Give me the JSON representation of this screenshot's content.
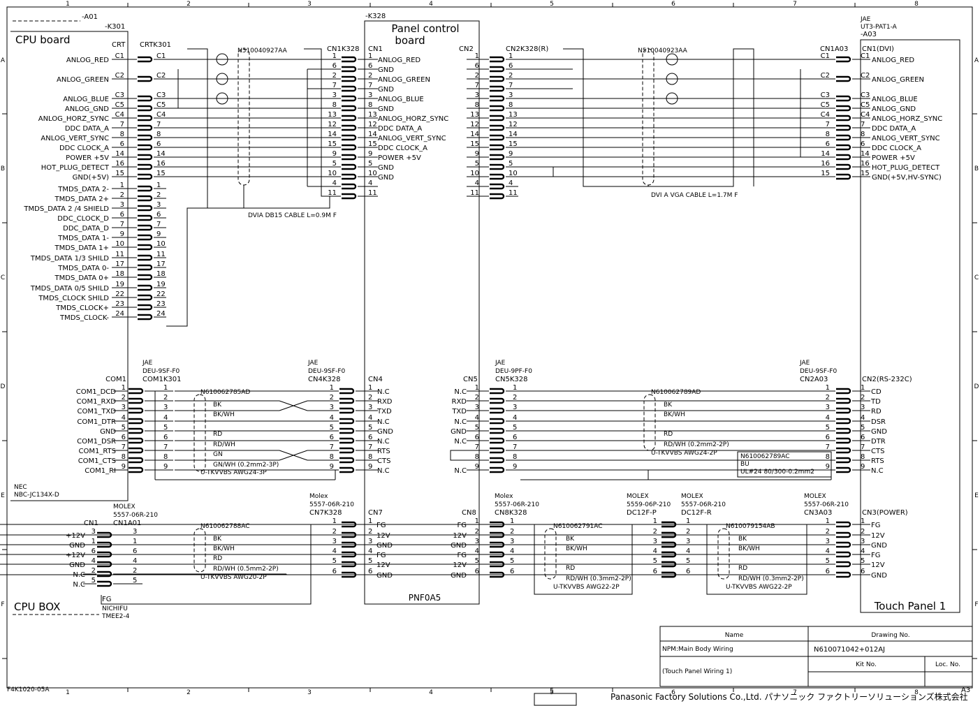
{
  "frame": {
    "columns": [
      "1",
      "2",
      "3",
      "4",
      "5",
      "6",
      "7",
      "8"
    ],
    "rows": [
      "A",
      "B",
      "C",
      "D",
      "E",
      "F"
    ],
    "doc_code": "F4K1020-05A",
    "sheet": "A3",
    "page_box": "5",
    "company": "Panasonic Factory Solutions Co.,Ltd. パナソニック ファクトリーソリューションズ株式会社"
  },
  "title_block": {
    "name_header": "Name",
    "drawing_header": "Drawing No.",
    "name": "NPM:Main Body Wiring",
    "subname": "(Touch Panel Wiring 1)",
    "drawing_no": "N610071042+012AJ",
    "kit_header": "Kit No.",
    "loc_header": "Loc. No."
  },
  "cpu_board": {
    "ref": "-A01",
    "sub_ref": "-K301",
    "title": "CPU board",
    "maker": "NEC",
    "model": "NBC-JC134X-D"
  },
  "cpu_box": {
    "title": "CPU BOX",
    "fg": "FG",
    "lug_maker": "NICHIFU",
    "lug_model": "TMEE2-4"
  },
  "panel_board": {
    "ref": "-K328",
    "title": [
      "Panel control",
      "board"
    ],
    "model": "PNF0A5"
  },
  "touch_panel": {
    "maker": "JAE",
    "model": "UT3-PAT1-A",
    "ref": "-A03",
    "title": "Touch Panel 1"
  },
  "connectors": {
    "dvi_cpu": {
      "header": "CRT",
      "mate_header": "CRTK301",
      "pins": [
        {
          "name": "ANLOG_RED",
          "pin": "C1"
        },
        {
          "name": "ANLOG_GREEN",
          "pin": "C2"
        },
        {
          "name": "ANLOG_BLUE",
          "pin": "C3"
        },
        {
          "name": "ANLOG_GND",
          "pin": "C5"
        },
        {
          "name": "ANLOG_HORZ_SYNC",
          "pin": "C4"
        },
        {
          "name": "DDC DATA_A",
          "pin": "7"
        },
        {
          "name": "ANLOG_VERT_SYNC",
          "pin": "8"
        },
        {
          "name": "DDC CLOCK_A",
          "pin": "6"
        },
        {
          "name": "POWER +5V",
          "pin": "14"
        },
        {
          "name": "HOT_PLUG_DETECT",
          "pin": "16"
        },
        {
          "name": "GND(+5V)",
          "pin": "15"
        },
        {
          "name": "TMDS_DATA 2-",
          "pin": "1"
        },
        {
          "name": "TMDS_DATA 2+",
          "pin": "2"
        },
        {
          "name": "TMDS_DATA 2 /4 SHIELD",
          "pin": "3"
        },
        {
          "name": "DDC_CLOCK_D",
          "pin": "6"
        },
        {
          "name": "DDC_DATA_D",
          "pin": "7"
        },
        {
          "name": "TMDS_DATA 1-",
          "pin": "9"
        },
        {
          "name": "TMDS_DATA 1+",
          "pin": "10"
        },
        {
          "name": "TMDS_DATA 1/3 SHILD",
          "pin": "11"
        },
        {
          "name": "TMDS_DATA 0-",
          "pin": "17"
        },
        {
          "name": "TMDS_DATA 0+",
          "pin": "18"
        },
        {
          "name": "TMDS_DATA 0/5 SHILD",
          "pin": "19"
        },
        {
          "name": "TMDS_CLOCK SHILD",
          "pin": "22"
        },
        {
          "name": "TMDS_CLOCK+",
          "pin": "23"
        },
        {
          "name": "TMDS_CLOCK-",
          "pin": "24"
        }
      ]
    },
    "dvi_panel_in": {
      "mate_header": "CN1K328",
      "header": "CN1",
      "pins": [
        {
          "pin": "1",
          "name": "ANLOG_RED"
        },
        {
          "pin": "6",
          "name": "GND"
        },
        {
          "pin": "2",
          "name": "ANLOG_GREEN"
        },
        {
          "pin": "7",
          "name": "GND"
        },
        {
          "pin": "3",
          "name": "ANLOG_BLUE"
        },
        {
          "pin": "8",
          "name": "GND"
        },
        {
          "pin": "13",
          "name": "ANLOG_HORZ_SYNC"
        },
        {
          "pin": "12",
          "name": "DDC DATA_A"
        },
        {
          "pin": "14",
          "name": "ANLOG_VERT_SYNC"
        },
        {
          "pin": "15",
          "name": "DDC CLOCK_A"
        },
        {
          "pin": "9",
          "name": "POWER +5V"
        },
        {
          "pin": "5",
          "name": "GND"
        },
        {
          "pin": "10",
          "name": "GND"
        },
        {
          "pin": "4"
        },
        {
          "pin": "11"
        }
      ]
    },
    "dvi_panel_out": {
      "header": "CN2",
      "mate_header": "CN2K328(R)",
      "pins": [
        {
          "pin": "1"
        },
        {
          "pin": "6"
        },
        {
          "pin": "2"
        },
        {
          "pin": "7"
        },
        {
          "pin": "3"
        },
        {
          "pin": "8"
        },
        {
          "pin": "13"
        },
        {
          "pin": "12"
        },
        {
          "pin": "14"
        },
        {
          "pin": "15"
        },
        {
          "pin": "9"
        },
        {
          "pin": "5"
        },
        {
          "pin": "10"
        },
        {
          "pin": "4"
        },
        {
          "pin": "11"
        }
      ]
    },
    "dvi_touch": {
      "mate_header": "CN1A03",
      "header": "CN1(DVI)",
      "pins": [
        {
          "pin": "C1",
          "name": "ANLOG_RED"
        },
        {
          "pin": "C2",
          "name": "ANLOG_GREEN"
        },
        {
          "pin": "C3",
          "name": "ANLOG_BLUE"
        },
        {
          "pin": "C5",
          "name": "ANLOG_GND"
        },
        {
          "pin": "C4",
          "name": "ANLOG_HORZ_SYNC"
        },
        {
          "pin": "7",
          "name": "DDC DATA_A"
        },
        {
          "pin": "8",
          "name": "ANLOG_VERT_SYNC"
        },
        {
          "pin": "6",
          "name": "DDC CLOCK_A"
        },
        {
          "pin": "14",
          "name": "POWER +5V"
        },
        {
          "pin": "16",
          "name": "HOT_PLUG_DETECT"
        },
        {
          "pin": "15",
          "name": "GND(+5V,HV-SYNC)"
        }
      ]
    },
    "com_cpu": {
      "header": "COM1",
      "maker": "JAE",
      "model": "DEU-9SF-F0",
      "mate_header": "COM1K301",
      "pins": [
        {
          "name": "COM1_DCD",
          "pin": "1"
        },
        {
          "name": "COM1_RXD",
          "pin": "2"
        },
        {
          "name": "COM1_TXD",
          "pin": "3"
        },
        {
          "name": "COM1_DTR",
          "pin": "4"
        },
        {
          "name": "GND",
          "pin": "5"
        },
        {
          "name": "COM1_DSR",
          "pin": "6"
        },
        {
          "name": "COM1_RTS",
          "pin": "7"
        },
        {
          "name": "COM1_CTS",
          "pin": "8"
        },
        {
          "name": "COM1_RI",
          "pin": "9"
        }
      ]
    },
    "com_panel_in": {
      "maker": "JAE",
      "model": "DEU-9SF-F0",
      "mate_header": "CN4K328",
      "header": "CN4",
      "pins": [
        {
          "pin": "1",
          "name": "N.C"
        },
        {
          "pin": "2",
          "name": "RXD"
        },
        {
          "pin": "3",
          "name": "TXD"
        },
        {
          "pin": "4",
          "name": "N.C"
        },
        {
          "pin": "5",
          "name": "GND"
        },
        {
          "pin": "6",
          "name": "N.C"
        },
        {
          "pin": "7",
          "name": "RTS"
        },
        {
          "pin": "8",
          "name": "CTS"
        },
        {
          "pin": "9",
          "name": "N.C"
        }
      ]
    },
    "com_panel_out": {
      "header": "CN5",
      "maker": "JAE",
      "model": "DEU-9PF-F0",
      "mate_header": "CN5K328",
      "pins": [
        {
          "name": "N.C",
          "pin": "1"
        },
        {
          "name": "RXD",
          "pin": "2"
        },
        {
          "name": "TXD",
          "pin": "3"
        },
        {
          "name": "N.C",
          "pin": "4"
        },
        {
          "name": "GND",
          "pin": "5"
        },
        {
          "name": "N.C",
          "pin": "6"
        },
        {
          "pin": "7"
        },
        {
          "pin": "8"
        },
        {
          "name": "N.C",
          "pin": "9"
        }
      ]
    },
    "com_touch": {
      "maker": "JAE",
      "model": "DEU-9SF-F0",
      "mate_header": "CN2A03",
      "header": "CN2(RS-232C)",
      "pins": [
        {
          "pin": "1",
          "name": "CD"
        },
        {
          "pin": "2",
          "name": "TD"
        },
        {
          "pin": "3",
          "name": "RD"
        },
        {
          "pin": "4",
          "name": "DSR"
        },
        {
          "pin": "5",
          "name": "GND"
        },
        {
          "pin": "6",
          "name": "DTR"
        },
        {
          "pin": "7",
          "name": "CTS"
        },
        {
          "pin": "8",
          "name": "RTS"
        },
        {
          "pin": "9",
          "name": "N.C"
        }
      ]
    },
    "pwr_cpu": {
      "header": "CN1",
      "maker": "MOLEX",
      "model": "5557-06R-210",
      "mate_header": "CN1A01",
      "pins": [
        {
          "name": "+12V",
          "pin": "3"
        },
        {
          "name": "GND",
          "pin": "1"
        },
        {
          "name": "+12V",
          "pin": "6"
        },
        {
          "name": "GND",
          "pin": "4"
        },
        {
          "name": "N.C",
          "pin": "2"
        },
        {
          "name": "N.C",
          "pin": "5"
        }
      ]
    },
    "pwr_panel_in": {
      "maker": "Molex",
      "model": "5557-06R-210",
      "mate_header": "CN7K328",
      "header": "CN7",
      "pins": [
        {
          "pin": "1",
          "name": "FG"
        },
        {
          "pin": "2",
          "name": "12V"
        },
        {
          "pin": "3",
          "name": "GND"
        },
        {
          "pin": "4",
          "name": "FG"
        },
        {
          "pin": "5",
          "name": "12V"
        },
        {
          "pin": "6",
          "name": "GND"
        }
      ]
    },
    "pwr_panel_out": {
      "header": "CN8",
      "maker": "Molex",
      "model": "5557-06R-210",
      "mate_header": "CN8K328",
      "pins": [
        {
          "name": "FG",
          "pin": "1"
        },
        {
          "name": "12V",
          "pin": "2"
        },
        {
          "name": "GND",
          "pin": "3"
        },
        {
          "name": "FG",
          "pin": "4"
        },
        {
          "name": "12V",
          "pin": "5"
        },
        {
          "name": "GND",
          "pin": "6"
        }
      ]
    },
    "relay_p": {
      "maker": "MOLEX",
      "model": "5559-06P-210",
      "header": "DC12F-P",
      "pins": [
        {
          "pin": "1"
        },
        {
          "pin": "2"
        },
        {
          "pin": "3"
        },
        {
          "pin": "4"
        },
        {
          "pin": "5"
        },
        {
          "pin": "6"
        }
      ]
    },
    "relay_r": {
      "maker": "MOLEX",
      "model": "5557-06R-210",
      "header": "DC12F-R",
      "pins": [
        {
          "pin": "1"
        },
        {
          "pin": "2"
        },
        {
          "pin": "3"
        },
        {
          "pin": "4"
        },
        {
          "pin": "5"
        },
        {
          "pin": "6"
        }
      ]
    },
    "pwr_touch": {
      "maker": "MOLEX",
      "model": "5557-06R-210",
      "mate_header": "CN3A03",
      "header": "CN3(POWER)",
      "pins": [
        {
          "pin": "1",
          "name": "FG"
        },
        {
          "pin": "2",
          "name": "12V"
        },
        {
          "pin": "3",
          "name": "GND"
        },
        {
          "pin": "4",
          "name": "FG"
        },
        {
          "pin": "5",
          "name": "12V"
        },
        {
          "pin": "6",
          "name": "GND"
        }
      ]
    }
  },
  "cables": {
    "dvi_cpu": {
      "part": "N510040927AA",
      "spec": "DVIA DB15 CABLE L=0.9M F"
    },
    "dvi_touch": {
      "part": "N510040923AA",
      "spec": "DVI A VGA CABLE L=1.7M F"
    },
    "com_cpu": {
      "part": "N610062785AD",
      "wires": [
        "BK",
        "BK/WH",
        "RD",
        "RD/WH",
        "GN",
        "GN/WH (0.2mm2-3P)"
      ],
      "spec": "U-TKVVBS AWG24-3P"
    },
    "com_touch": {
      "part": "N610062789AD",
      "wires": [
        "BK",
        "BK/WH",
        "RD",
        "RD/WH (0.2mm2-2P)"
      ],
      "spec": "U-TKVVBS AWG24-2P"
    },
    "com_jumper": {
      "part": "N610062789AC",
      "wires": [
        "BU"
      ],
      "spec": "UL#24 80/300-0.2mm2"
    },
    "pwr_cpu": {
      "part": "N610062788AC",
      "wires": [
        "BK",
        "BK/WH",
        "RD",
        "RD/WH (0.5mm2-2P)"
      ],
      "spec": "U-TKVVBS AWG20-2P"
    },
    "pwr_panel": {
      "part": "N610062791AC",
      "wires": [
        "BK",
        "BK/WH",
        "RD",
        "RD/WH (0.3mm2-2P)"
      ],
      "spec": "U-TKVVBS AWG22-2P"
    },
    "pwr_touch": {
      "part": "N610079154AB",
      "wires": [
        "BK",
        "BK/WH",
        "RD",
        "RD/WH (0.3mm2-2P)"
      ],
      "spec": "U-TKVVBS AWG22-2P"
    }
  }
}
